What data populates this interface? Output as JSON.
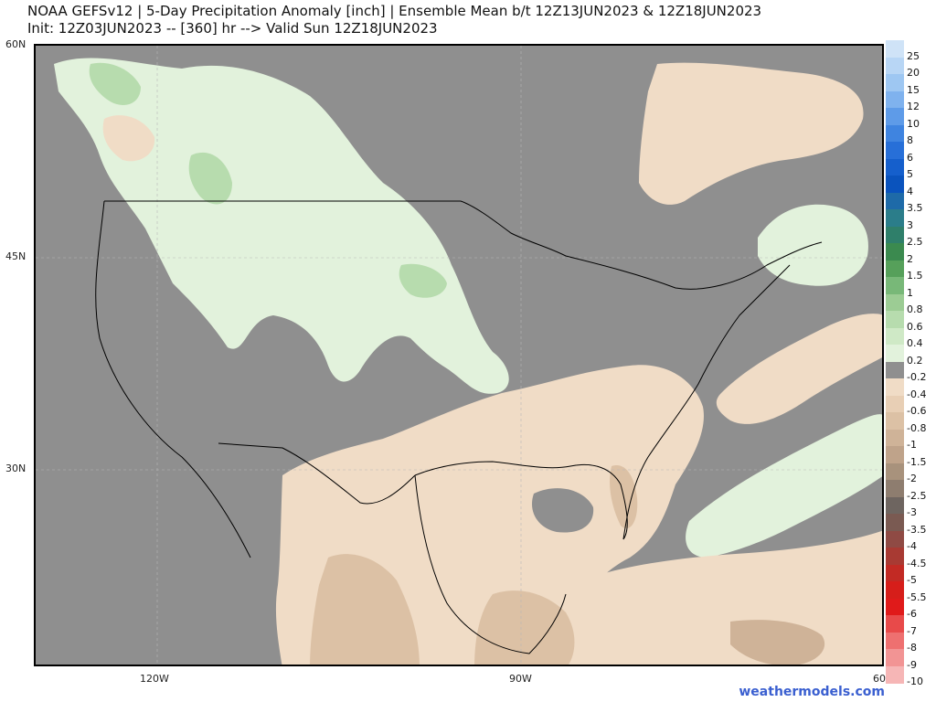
{
  "title": {
    "line1": "NOAA GEFSv12 | 5-Day Precipitation Anomaly [inch] | Ensemble Mean b/t 12Z13JUN2023 & 12Z18JUN2023",
    "line2": "Init: 12Z03JUN2023 -- [360] hr --> Valid Sun 12Z18JUN2023"
  },
  "axes": {
    "lat_labels": [
      "60N",
      "45N",
      "30N"
    ],
    "lon_labels": [
      "120W",
      "90W",
      "60"
    ]
  },
  "legend": {
    "levels": [
      {
        "label": "25",
        "color": "#cfe3f7"
      },
      {
        "label": "20",
        "color": "#b8d6f5"
      },
      {
        "label": "15",
        "color": "#9ec7f2"
      },
      {
        "label": "12",
        "color": "#7fb2ee"
      },
      {
        "label": "10",
        "color": "#5e9be8"
      },
      {
        "label": "8",
        "color": "#3f84e0"
      },
      {
        "label": "6",
        "color": "#276fd8"
      },
      {
        "label": "5",
        "color": "#155fcc"
      },
      {
        "label": "4",
        "color": "#0a53bd"
      },
      {
        "label": "3.5",
        "color": "#1e6aa8"
      },
      {
        "label": "3",
        "color": "#2b7d8a"
      },
      {
        "label": "2.5",
        "color": "#2f7f6a"
      },
      {
        "label": "2",
        "color": "#3b8a4f"
      },
      {
        "label": "1.5",
        "color": "#56a05a"
      },
      {
        "label": "1",
        "color": "#78b878"
      },
      {
        "label": "0.8",
        "color": "#9ccc94"
      },
      {
        "label": "0.6",
        "color": "#b7dcae"
      },
      {
        "label": "0.4",
        "color": "#cfe9c6"
      },
      {
        "label": "0.2",
        "color": "#e2f2dc"
      },
      {
        "label": "-0.2",
        "color": "#8f8f8f"
      },
      {
        "label": "-0.4",
        "color": "#f0dcc6"
      },
      {
        "label": "-0.6",
        "color": "#e8cfb5"
      },
      {
        "label": "-0.8",
        "color": "#dcc1a5"
      },
      {
        "label": "-1",
        "color": "#cfb398"
      },
      {
        "label": "-1.5",
        "color": "#bfa38a"
      },
      {
        "label": "-2",
        "color": "#a8927c"
      },
      {
        "label": "-2.5",
        "color": "#8e7d6f"
      },
      {
        "label": "-3",
        "color": "#6e6560"
      },
      {
        "label": "-3.5",
        "color": "#7a5a52"
      },
      {
        "label": "-4",
        "color": "#8f4a44"
      },
      {
        "label": "-4.5",
        "color": "#a83a33"
      },
      {
        "label": "-5",
        "color": "#c22a24"
      },
      {
        "label": "-5.5",
        "color": "#d61e1a"
      },
      {
        "label": "-6",
        "color": "#e01a1a"
      },
      {
        "label": "-7",
        "color": "#e84a4a"
      },
      {
        "label": "-8",
        "color": "#ee7070"
      },
      {
        "label": "-9",
        "color": "#f29494"
      },
      {
        "label": "-10",
        "color": "#f6b6b6"
      }
    ]
  },
  "credit": "weathermodels.com",
  "colors": {
    "base": "#8f8f8f",
    "wet_light": "#e2f2dc",
    "wet_mid": "#b7dcae",
    "wet_dark": "#9ccc94",
    "dry_light": "#f0dcc6",
    "dry_mid": "#e8cfb5",
    "dry_dark": "#cfb398",
    "dry_darker": "#bfa38a",
    "border": "#000000"
  }
}
